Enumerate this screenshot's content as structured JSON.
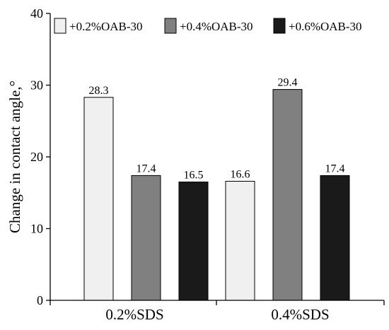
{
  "chart_data": {
    "type": "bar",
    "categories": [
      "0.2%SDS",
      "0.4%SDS"
    ],
    "series": [
      {
        "name": "+0.2%OAB-30",
        "color": "#f0f0f0",
        "values": [
          28.3,
          16.6
        ]
      },
      {
        "name": "+0.4%OAB-30",
        "color": "#808080",
        "values": [
          17.4,
          29.4
        ]
      },
      {
        "name": "+0.6%OAB-30",
        "color": "#1a1a1a",
        "values": [
          16.5,
          17.4
        ]
      }
    ],
    "data_labels": [
      [
        "28.3",
        "17.4",
        "16.5"
      ],
      [
        "16.6",
        "29.4",
        "17.4"
      ]
    ],
    "ylabel": "Change in contact angle,°",
    "xlabel": "",
    "ylim": [
      0,
      40
    ],
    "yticks": [
      0,
      10,
      20,
      30,
      40
    ],
    "grid": false,
    "legend_position": "top"
  }
}
